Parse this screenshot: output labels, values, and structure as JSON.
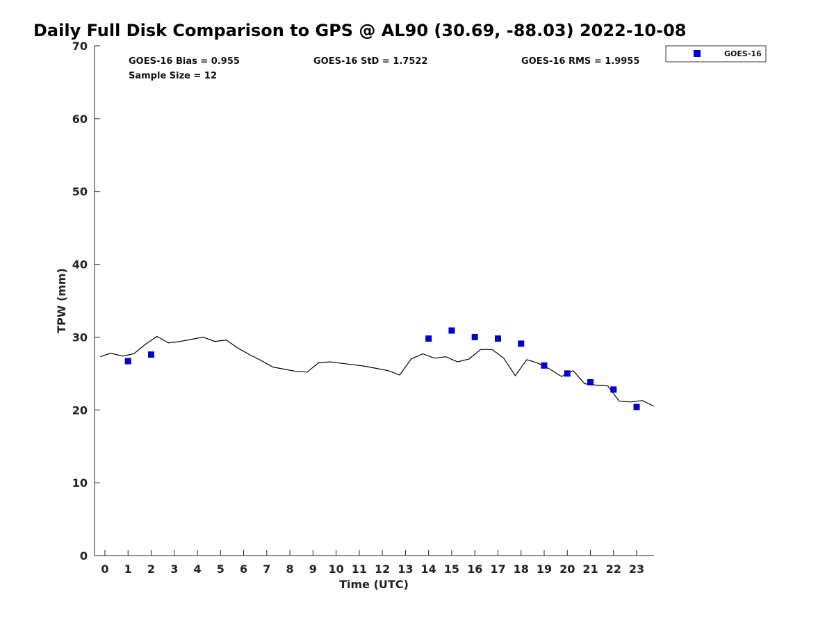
{
  "chart_data": {
    "type": "scatter",
    "title": "Daily Full Disk Comparison to GPS @ AL90 (30.69, -88.03) 2022-10-08",
    "xlabel": "Time (UTC)",
    "ylabel": "TPW (mm)",
    "xlim": [
      -0.45,
      23.75
    ],
    "ylim": [
      0,
      70
    ],
    "x_ticks": [
      "0",
      "1",
      "2",
      "3",
      "4",
      "5",
      "6",
      "7",
      "8",
      "9",
      "10",
      "11",
      "12",
      "13",
      "14",
      "15",
      "16",
      "17",
      "18",
      "19",
      "20",
      "21",
      "22",
      "23"
    ],
    "y_ticks": [
      "0",
      "10",
      "20",
      "30",
      "40",
      "50",
      "60",
      "70"
    ],
    "grid": false,
    "legend_position": "top-right",
    "stats": {
      "bias": "GOES-16 Bias = 0.955",
      "std": "GOES-16 StD = 1.7522",
      "rms": "GOES-16 RMS = 1.9955",
      "sample": "Sample Size = 12"
    },
    "series": [
      {
        "name": "GOES-16",
        "type": "scatter",
        "color": "#0000cc",
        "x": [
          1,
          2,
          14,
          15,
          16,
          17,
          18,
          19,
          20,
          21,
          22,
          23
        ],
        "y": [
          26.7,
          27.6,
          29.8,
          30.9,
          30.0,
          29.8,
          29.1,
          26.1,
          25.0,
          23.8,
          22.8,
          20.4
        ]
      },
      {
        "type": "line",
        "color": "#000000",
        "x": [
          -0.2,
          0.25,
          0.75,
          1.25,
          1.75,
          2.25,
          2.75,
          3.25,
          3.75,
          4.25,
          4.75,
          5.25,
          5.75,
          6.25,
          6.75,
          7.25,
          7.75,
          8.25,
          8.75,
          9.25,
          9.75,
          10.25,
          10.75,
          11.25,
          11.75,
          12.25,
          12.75,
          13.25,
          13.75,
          14.25,
          14.75,
          15.25,
          15.75,
          16.25,
          16.75,
          17.25,
          17.75,
          18.25,
          18.75,
          19.25,
          19.75,
          20.25,
          20.75,
          21.25,
          21.75,
          22.25,
          22.75,
          23.25,
          23.75
        ],
        "y": [
          27.3,
          27.8,
          27.4,
          27.7,
          29.0,
          30.1,
          29.2,
          29.4,
          29.7,
          30.0,
          29.4,
          29.6,
          28.5,
          27.6,
          26.8,
          25.9,
          25.6,
          25.3,
          25.2,
          26.5,
          26.6,
          26.4,
          26.2,
          26.0,
          25.7,
          25.4,
          24.8,
          27.0,
          27.7,
          27.1,
          27.3,
          26.6,
          27.0,
          28.3,
          28.3,
          27.1,
          24.7,
          26.9,
          26.4,
          25.6,
          24.6,
          25.4,
          23.6,
          23.4,
          23.3,
          21.2,
          21.1,
          21.3,
          20.5
        ]
      }
    ]
  }
}
